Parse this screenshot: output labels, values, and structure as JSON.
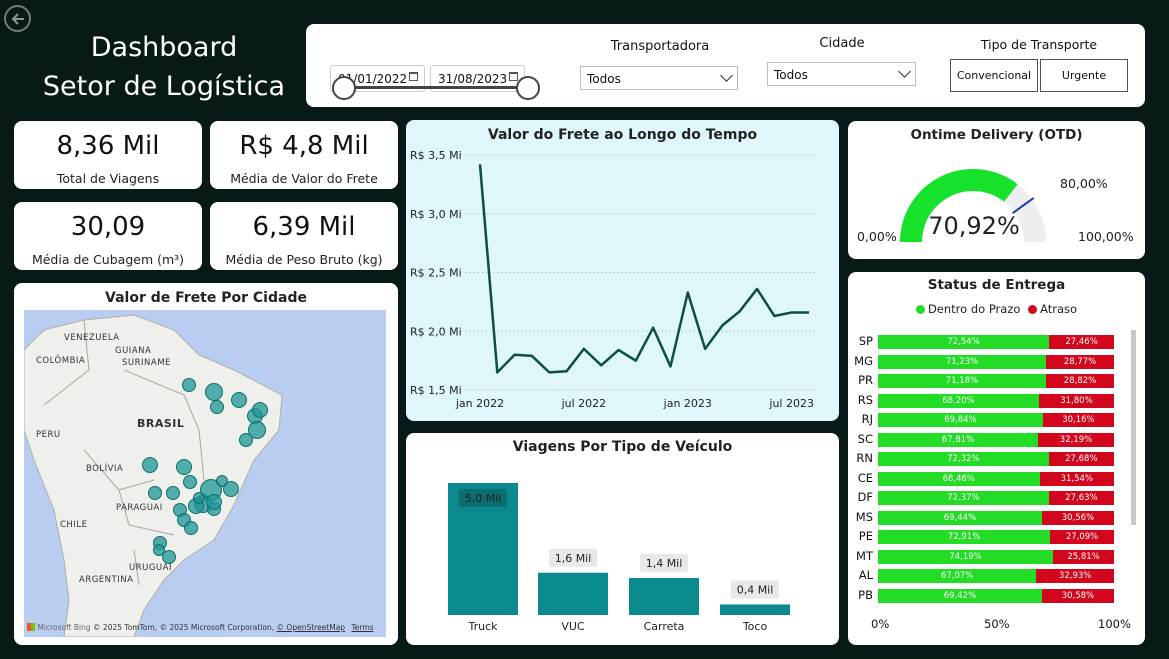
{
  "header": {
    "title_line1": "Dashboard",
    "title_line2": "Setor de Logística"
  },
  "filters": {
    "date_start": "01/01/2022",
    "date_end": "31/08/2023",
    "transportadora_label": "Transportadora",
    "transportadora_value": "Todos",
    "cidade_label": "Cidade",
    "cidade_value": "Todos",
    "tipo_label": "Tipo de Transporte",
    "tipo_options": [
      "Convencional",
      "Urgente"
    ]
  },
  "kpis": [
    {
      "value": "8,36 Mil",
      "label": "Total de Viagens"
    },
    {
      "value": "R$ 4,8 Mil",
      "label": "Média de Valor do Frete"
    },
    {
      "value": "30,09",
      "label": "Média de Cubagem (m³)"
    },
    {
      "value": "6,39 Mil",
      "label": "Média de Peso Bruto (kg)"
    }
  ],
  "map": {
    "title": "Valor de Frete Por Cidade",
    "labels": [
      "VENEZUELA",
      "COLÔMBIA",
      "GUIANA",
      "SURINAME",
      "BRASIL",
      "PERU",
      "BOLÍVIA",
      "PARAGUAI",
      "CHILE",
      "URUGUAI",
      "ARGENTINA"
    ],
    "attribution": "© 2025 TomTom, © 2025 Microsoft Corporation,",
    "osm_link": "© OpenStreetMap",
    "terms_link": "Terms",
    "bing": "Microsoft Bing"
  },
  "line_chart": {
    "chart_data": {
      "type": "line",
      "title": "Valor do Frete ao Longo do Tempo",
      "y_tick_labels": [
        "R$ 3,5 Mi",
        "R$ 3,0 Mi",
        "R$ 2,5 Mi",
        "R$ 2,0 Mi",
        "R$ 1,5 Mi"
      ],
      "y_ticks": [
        3.5,
        3.0,
        2.5,
        2.0,
        1.5
      ],
      "x_tick_labels": [
        "jan 2022",
        "jul 2022",
        "jan 2023",
        "jul 2023"
      ],
      "ylim": [
        1.5,
        3.5
      ],
      "x": [
        "2022-01",
        "2022-02",
        "2022-03",
        "2022-04",
        "2022-05",
        "2022-06",
        "2022-07",
        "2022-08",
        "2022-09",
        "2022-10",
        "2022-11",
        "2022-12",
        "2023-01",
        "2023-02",
        "2023-03",
        "2023-04",
        "2023-05",
        "2023-06",
        "2023-07",
        "2023-08"
      ],
      "values": [
        3.42,
        1.65,
        1.8,
        1.79,
        1.65,
        1.66,
        1.85,
        1.71,
        1.84,
        1.75,
        2.03,
        1.7,
        2.33,
        1.85,
        2.05,
        2.17,
        2.36,
        2.13,
        2.16,
        2.16
      ]
    }
  },
  "otd": {
    "title": "Ontime Delivery (OTD)",
    "value_label": "70,92%",
    "min_label": "0,00%",
    "max_label": "100,00%",
    "target_label": "80,00%",
    "chart_data": {
      "type": "gauge",
      "value": 70.92,
      "target": 80.0,
      "min": 0,
      "max": 100,
      "color": "#16e22b",
      "target_color": "#1a3fb0"
    }
  },
  "vehicle_chart": {
    "chart_data": {
      "type": "bar",
      "title": "Viagens Por Tipo de Veículo",
      "categories": [
        "Truck",
        "VUC",
        "Carreta",
        "Toco"
      ],
      "values": [
        5.0,
        1.6,
        1.4,
        0.4
      ],
      "value_labels": [
        "5,0 Mil",
        "1,6 Mil",
        "1,4 Mil",
        "0,4 Mil"
      ],
      "color": "#0a8a8e"
    }
  },
  "status_chart": {
    "chart_data": {
      "type": "bar",
      "stacked": "100%",
      "title": "Status de Entrega",
      "legend": [
        "Dentro do Prazo",
        "Atraso"
      ],
      "colors": [
        "#22dc26",
        "#d2071d"
      ],
      "categories": [
        "SP",
        "MG",
        "PR",
        "RS",
        "RJ",
        "SC",
        "RN",
        "CE",
        "DF",
        "MS",
        "PE",
        "MT",
        "AL",
        "PB"
      ],
      "series": [
        {
          "name": "Dentro do Prazo",
          "values": [
            72.54,
            71.23,
            71.18,
            68.2,
            69.84,
            67.81,
            72.32,
            68.46,
            72.37,
            69.44,
            72.91,
            74.19,
            67.07,
            69.42
          ],
          "labels": [
            "72,54%",
            "71,23%",
            "71,18%",
            "68,20%",
            "69,84%",
            "67,81%",
            "72,32%",
            "68,46%",
            "72,37%",
            "69,44%",
            "72,91%",
            "74,19%",
            "67,07%",
            "69,42%"
          ]
        },
        {
          "name": "Atraso",
          "values": [
            27.46,
            28.77,
            28.82,
            31.8,
            30.16,
            32.19,
            27.68,
            31.54,
            27.63,
            30.56,
            27.09,
            25.81,
            32.93,
            30.58
          ],
          "labels": [
            "27,46%",
            "28,77%",
            "28,82%",
            "31,80%",
            "30,16%",
            "32,19%",
            "27,68%",
            "31,54%",
            "27,63%",
            "30,56%",
            "27,09%",
            "25,81%",
            "32,93%",
            "30,58%"
          ]
        }
      ],
      "x_tick_labels": [
        "0%",
        "50%",
        "100%"
      ]
    }
  }
}
